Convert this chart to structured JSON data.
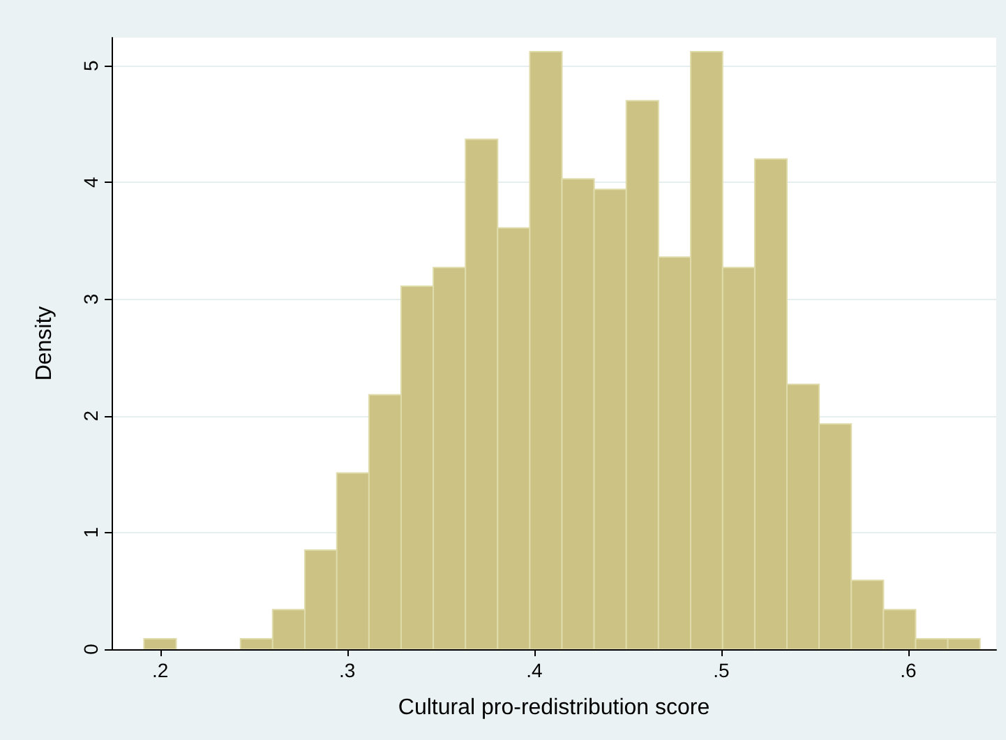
{
  "chart_data": {
    "type": "histogram",
    "xlabel": "Cultural pro-redistribution score",
    "ylabel": "Density",
    "bins": [
      0.1913,
      0.2085,
      0.2257,
      0.2429,
      0.2601,
      0.2773,
      0.2944,
      0.3116,
      0.3288,
      0.346,
      0.3632,
      0.3804,
      0.3976,
      0.4148,
      0.432,
      0.4492,
      0.4664,
      0.4836,
      0.5007,
      0.5179,
      0.5351,
      0.5523,
      0.5695,
      0.5867,
      0.6039,
      0.6211,
      0.6383
    ],
    "values": [
      0.09,
      0,
      0,
      0.09,
      0.34,
      0.85,
      1.51,
      2.18,
      3.11,
      3.27,
      4.37,
      3.61,
      5.12,
      4.03,
      3.94,
      4.7,
      3.36,
      5.12,
      3.27,
      4.2,
      2.27,
      1.93,
      0.59,
      0.34,
      0.09,
      0.09
    ],
    "color": "#cbc283",
    "xlim": [
      0.174,
      0.647
    ],
    "xticks": [
      {
        "value": 0.2,
        "label": ".2"
      },
      {
        "value": 0.3,
        "label": ".3"
      },
      {
        "value": 0.4,
        "label": ".4"
      },
      {
        "value": 0.5,
        "label": ".5"
      },
      {
        "value": 0.6,
        "label": ".6"
      }
    ],
    "ylim": [
      0,
      5.24
    ],
    "yticks": [
      0,
      1,
      2,
      3,
      4,
      5
    ],
    "grid": "y"
  }
}
